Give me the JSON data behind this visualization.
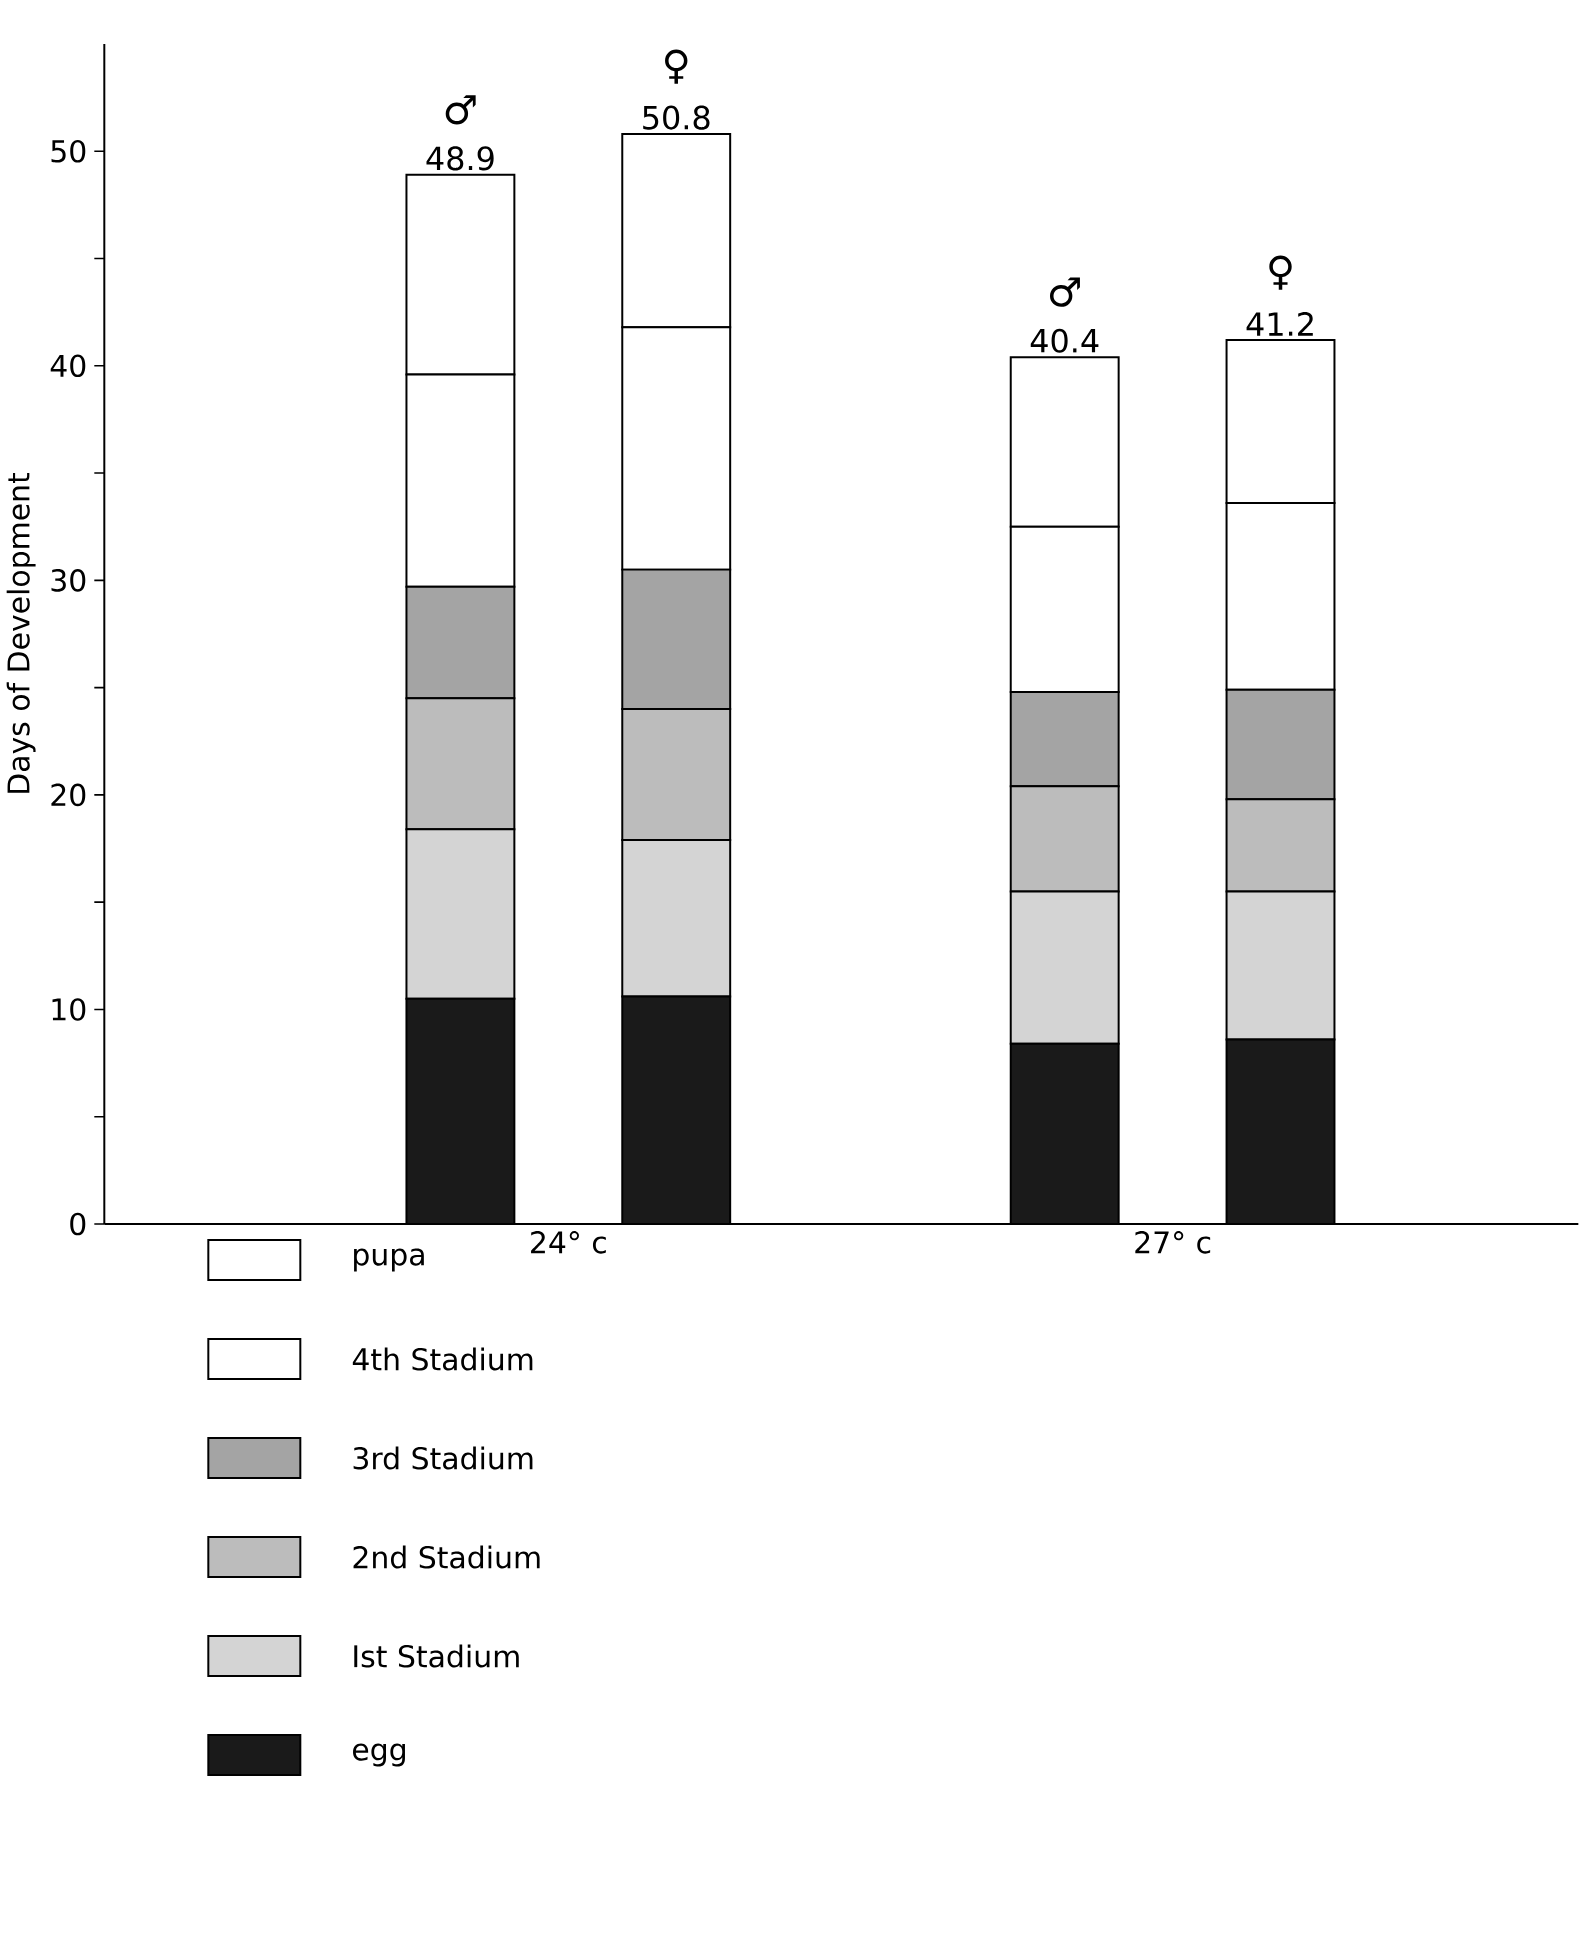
{
  "chart_data": {
    "type": "bar",
    "stacked": true,
    "ylabel": "Days of Development",
    "categories": [
      "♂",
      "♀",
      "♂",
      "♀"
    ],
    "totals": [
      "48.9",
      "50.8",
      "40.4",
      "41.2"
    ],
    "annotations": [
      "24° c",
      "27° c"
    ],
    "series": [
      {
        "name": "egg",
        "color": "#1a1a1a",
        "values": [
          10.5,
          10.6,
          8.4,
          8.6
        ]
      },
      {
        "name": "Ist  Stadium",
        "color": "#d4d4d4",
        "values": [
          7.9,
          7.3,
          7.1,
          6.9
        ]
      },
      {
        "name": "2nd  Stadium",
        "color": "#bcbcbc",
        "values": [
          6.1,
          6.1,
          4.9,
          4.3
        ]
      },
      {
        "name": "3rd  Stadium",
        "color": "#a4a4a4",
        "values": [
          5.2,
          6.5,
          4.4,
          5.1
        ]
      },
      {
        "name": "4th  Stadium",
        "color": "#ffffff",
        "values": [
          9.9,
          11.3,
          7.7,
          8.7
        ]
      },
      {
        "name": "pupa",
        "color": "#ffffff",
        "values": [
          9.3,
          9.0,
          7.9,
          7.6
        ]
      }
    ],
    "ylim": [
      0,
      55
    ],
    "yticks": [
      0,
      {
        "value": 5,
        "label": null
      },
      10,
      {
        "value": 15,
        "label": null
      },
      20,
      {
        "value": 25,
        "label": null
      },
      30,
      {
        "value": 35,
        "label": null
      },
      40,
      {
        "value": 45,
        "label": null
      },
      50
    ],
    "legend": "bottom",
    "grid": false
  }
}
